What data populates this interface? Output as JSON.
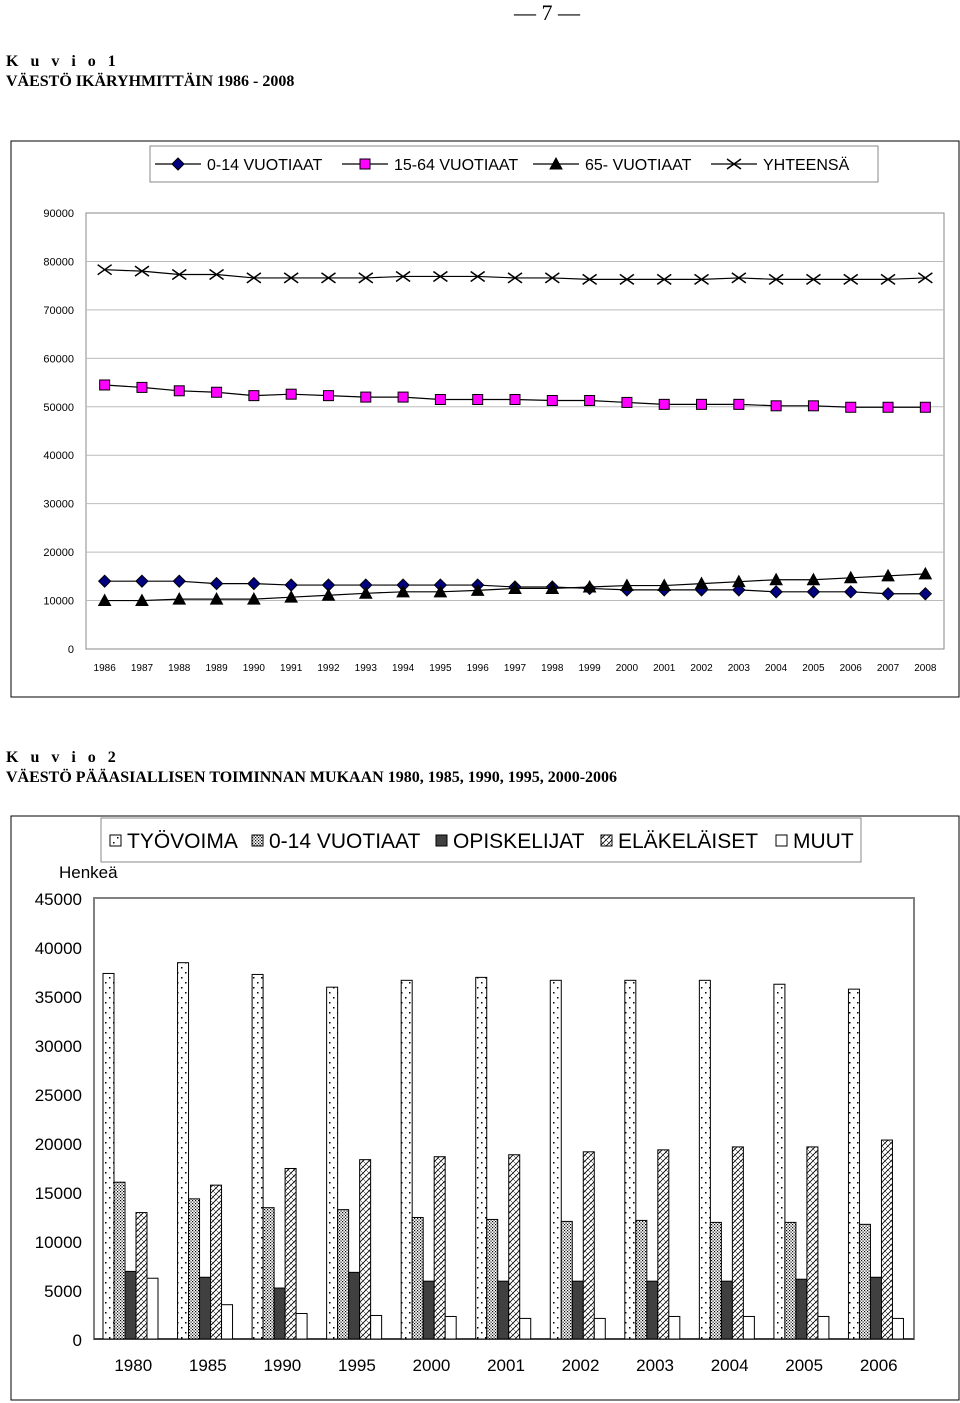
{
  "page_number": "— 7 —",
  "figure1": {
    "label": "K u v i o 1",
    "title": "VÄESTÖ IKÄRYHMITTÄIN 1986 - 2008"
  },
  "figure2": {
    "label": "K u v i o 2",
    "title": "VÄESTÖ PÄÄASIALLISEN TOIMINNAN MUKAAN 1980, 1985, 1990, 1995, 2000-2006"
  },
  "chart_data": [
    {
      "type": "line",
      "title": "VÄESTÖ IKÄRYHMITTÄIN 1986 - 2008",
      "xlabel": "",
      "ylabel": "",
      "ylim": [
        0,
        90000
      ],
      "yticks": [
        "0",
        "10000",
        "20000",
        "30000",
        "40000",
        "50000",
        "60000",
        "70000",
        "80000",
        "90000"
      ],
      "grid": true,
      "legend": "top",
      "x": [
        "1986",
        "1987",
        "1988",
        "1989",
        "1990",
        "1991",
        "1992",
        "1993",
        "1994",
        "1995",
        "1996",
        "1997",
        "1998",
        "1999",
        "2000",
        "2001",
        "2002",
        "2003",
        "2004",
        "2005",
        "2006",
        "2007",
        "2008"
      ],
      "series": [
        {
          "name": "0-14 VUOTIAAT",
          "marker": "diamond",
          "color": "#000080",
          "values": [
            14000,
            14000,
            14000,
            13500,
            13500,
            13200,
            13200,
            13200,
            13200,
            13200,
            13200,
            12800,
            12800,
            12500,
            12200,
            12200,
            12200,
            12200,
            11800,
            11800,
            11800,
            11400,
            11400
          ]
        },
        {
          "name": "15-64 VUOTIAAT",
          "marker": "square",
          "color": "#ff00ff",
          "values": [
            54500,
            54000,
            53300,
            53000,
            52300,
            52600,
            52300,
            52000,
            52000,
            51500,
            51500,
            51500,
            51300,
            51300,
            50900,
            50500,
            50500,
            50500,
            50200,
            50200,
            49900,
            49900,
            49900
          ]
        },
        {
          "name": "65- VUOTIAAT",
          "marker": "triangle",
          "color": "#000000",
          "values": [
            10000,
            10000,
            10300,
            10300,
            10300,
            10700,
            11100,
            11500,
            11800,
            11800,
            12100,
            12500,
            12500,
            12800,
            13100,
            13100,
            13500,
            13900,
            14300,
            14300,
            14700,
            15100,
            15500
          ]
        },
        {
          "name": "YHTEENSÄ",
          "marker": "x",
          "color": "#000000",
          "values": [
            78300,
            78000,
            77300,
            77300,
            76600,
            76600,
            76600,
            76600,
            76900,
            76900,
            76900,
            76600,
            76600,
            76300,
            76300,
            76300,
            76300,
            76600,
            76300,
            76300,
            76300,
            76300,
            76600
          ]
        }
      ]
    },
    {
      "type": "bar",
      "title": "VÄESTÖ PÄÄASIALLISEN TOIMINNAN MUKAAN 1980, 1985, 1990, 1995, 2000-2006",
      "xlabel": "",
      "ylabel": "Henkeä",
      "ylim": [
        0,
        45000
      ],
      "yticks": [
        "0",
        "5000",
        "10000",
        "15000",
        "20000",
        "25000",
        "30000",
        "35000",
        "40000",
        "45000"
      ],
      "grid": true,
      "legend": "top",
      "categories": [
        "1980",
        "1985",
        "1990",
        "1995",
        "2000",
        "2001",
        "2002",
        "2003",
        "2004",
        "2005",
        "2006"
      ],
      "series": [
        {
          "name": "TYÖVOIMA",
          "pattern": "sparse-dots",
          "values": [
            37300,
            38400,
            37200,
            35900,
            36600,
            36900,
            36600,
            36600,
            36600,
            36200,
            35700
          ]
        },
        {
          "name": "0-14 VUOTIAAT",
          "pattern": "dense-dots",
          "values": [
            16000,
            14300,
            13400,
            13200,
            12400,
            12200,
            12000,
            12100,
            11900,
            11900,
            11700
          ]
        },
        {
          "name": "OPISKELIJAT",
          "pattern": "solid-dark",
          "values": [
            6900,
            6300,
            5200,
            6800,
            5900,
            5900,
            5900,
            5900,
            5900,
            6100,
            6300
          ]
        },
        {
          "name": "ELÄKELÄISET",
          "pattern": "diagonal",
          "values": [
            12900,
            15700,
            17400,
            18300,
            18600,
            18800,
            19100,
            19300,
            19600,
            19600,
            20300
          ]
        },
        {
          "name": "MUUT",
          "pattern": "white",
          "values": [
            6200,
            3500,
            2600,
            2400,
            2300,
            2100,
            2100,
            2300,
            2300,
            2300,
            2100
          ]
        }
      ]
    }
  ]
}
